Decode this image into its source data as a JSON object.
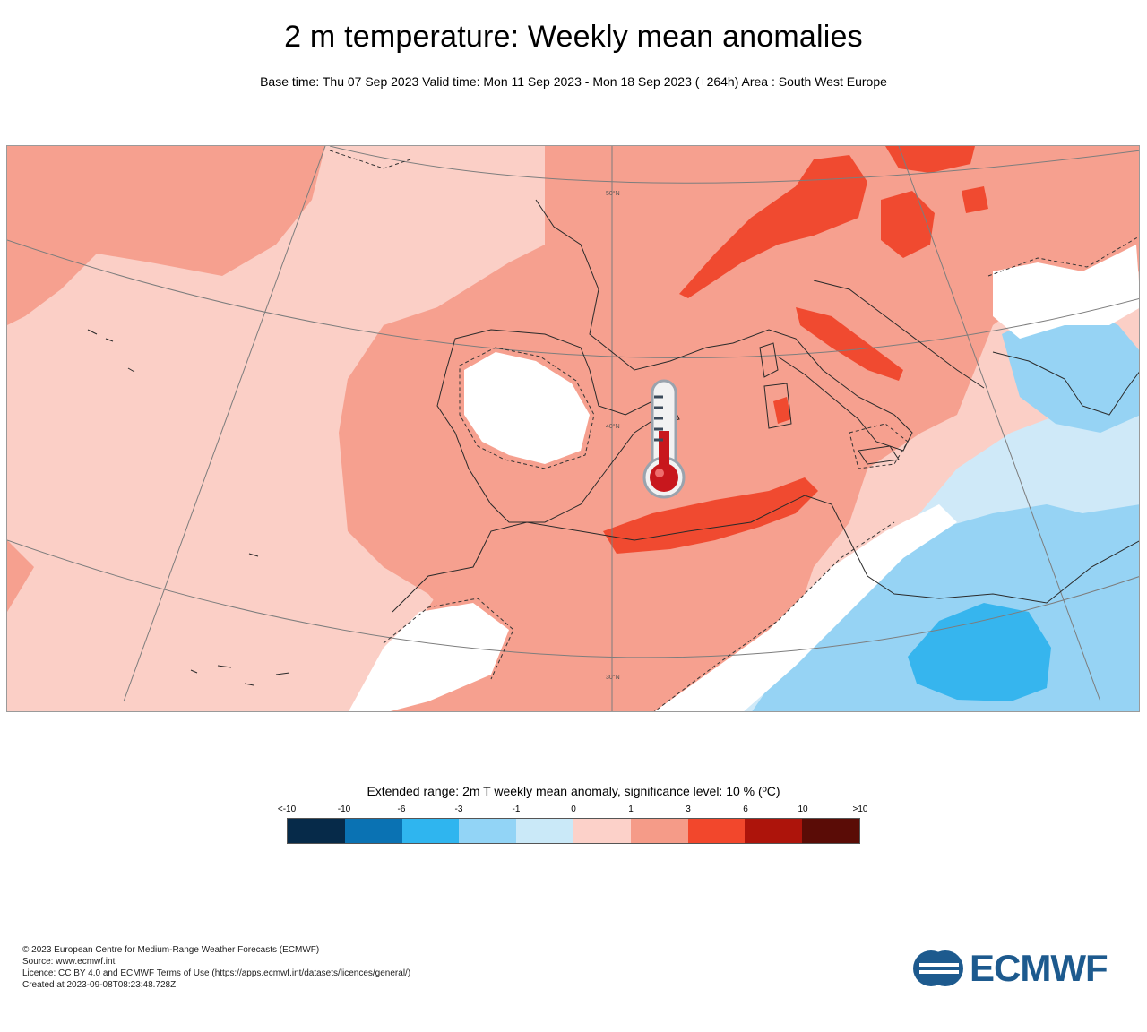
{
  "header": {
    "title": "2 m temperature: Weekly mean anomalies",
    "subtitle": "Base time: Thu 07 Sep 2023 Valid time: Mon 11 Sep 2023 - Mon 18 Sep 2023 (+264h) Area : South West Europe"
  },
  "map": {
    "graticule_labels": [
      "50°N",
      "40°N",
      "30°N"
    ],
    "colors": {
      "anom_0_1": "#fbcfc6",
      "anom_1_3": "#f6a08f",
      "anom_3_6": "#f04a30",
      "anom_neg1_0": "#cfe9f8",
      "anom_neg3_neg1": "#96d3f4",
      "anom_neg6_neg3": "#36b5ee",
      "not_significant": "#ffffff"
    },
    "icon": "thermometer-icon"
  },
  "legend": {
    "title": "Extended range: 2m T weekly mean anomaly, significance level: 10 % (ºC)",
    "ticks": [
      "<-10",
      "-10",
      "-6",
      "-3",
      "-1",
      "0",
      "1",
      "3",
      "6",
      "10",
      ">10"
    ],
    "colors": [
      "#062a49",
      "#0a72b3",
      "#2fb5ef",
      "#92d4f6",
      "#cae9f8",
      "#fcd1c9",
      "#f59b88",
      "#f2472c",
      "#ad140b",
      "#5a0c06"
    ]
  },
  "footer": {
    "copyright": "© 2023 European Centre for Medium-Range Weather Forecasts (ECMWF)",
    "source": "Source: www.ecmwf.int",
    "licence": "Licence: CC BY 4.0 and ECMWF Terms of Use (https://apps.ecmwf.int/datasets/licences/general/)",
    "created": "Created at 2023-09-08T08:23:48.728Z"
  },
  "logo": {
    "text": "ECMWF",
    "color": "#1d5a8e"
  }
}
